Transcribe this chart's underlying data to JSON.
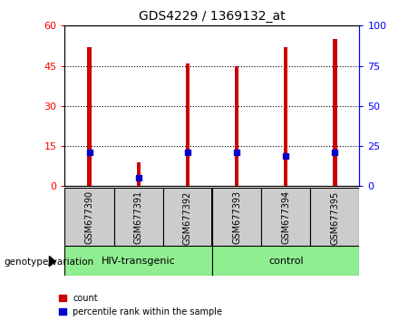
{
  "title": "GDS4229 / 1369132_at",
  "samples": [
    "GSM677390",
    "GSM677391",
    "GSM677392",
    "GSM677393",
    "GSM677394",
    "GSM677395"
  ],
  "counts": [
    52,
    9,
    46,
    45,
    52,
    55
  ],
  "percentile_ranks": [
    21,
    5,
    21,
    21,
    19,
    21
  ],
  "group1_label": "HIV-transgenic",
  "group2_label": "control",
  "group1_indices": [
    0,
    1,
    2
  ],
  "group2_indices": [
    3,
    4,
    5
  ],
  "group_color": "#90EE90",
  "bar_color": "#CC0000",
  "blue_marker_color": "#0000CC",
  "ylim_left": [
    0,
    60
  ],
  "ylim_right": [
    0,
    100
  ],
  "yticks_left": [
    0,
    15,
    30,
    45,
    60
  ],
  "yticks_right": [
    0,
    25,
    50,
    75,
    100
  ],
  "background_color": "#FFFFFF",
  "bar_width": 0.08,
  "legend_count_color": "#CC0000",
  "legend_percentile_color": "#0000CC",
  "label_bg_color": "#CCCCCC"
}
